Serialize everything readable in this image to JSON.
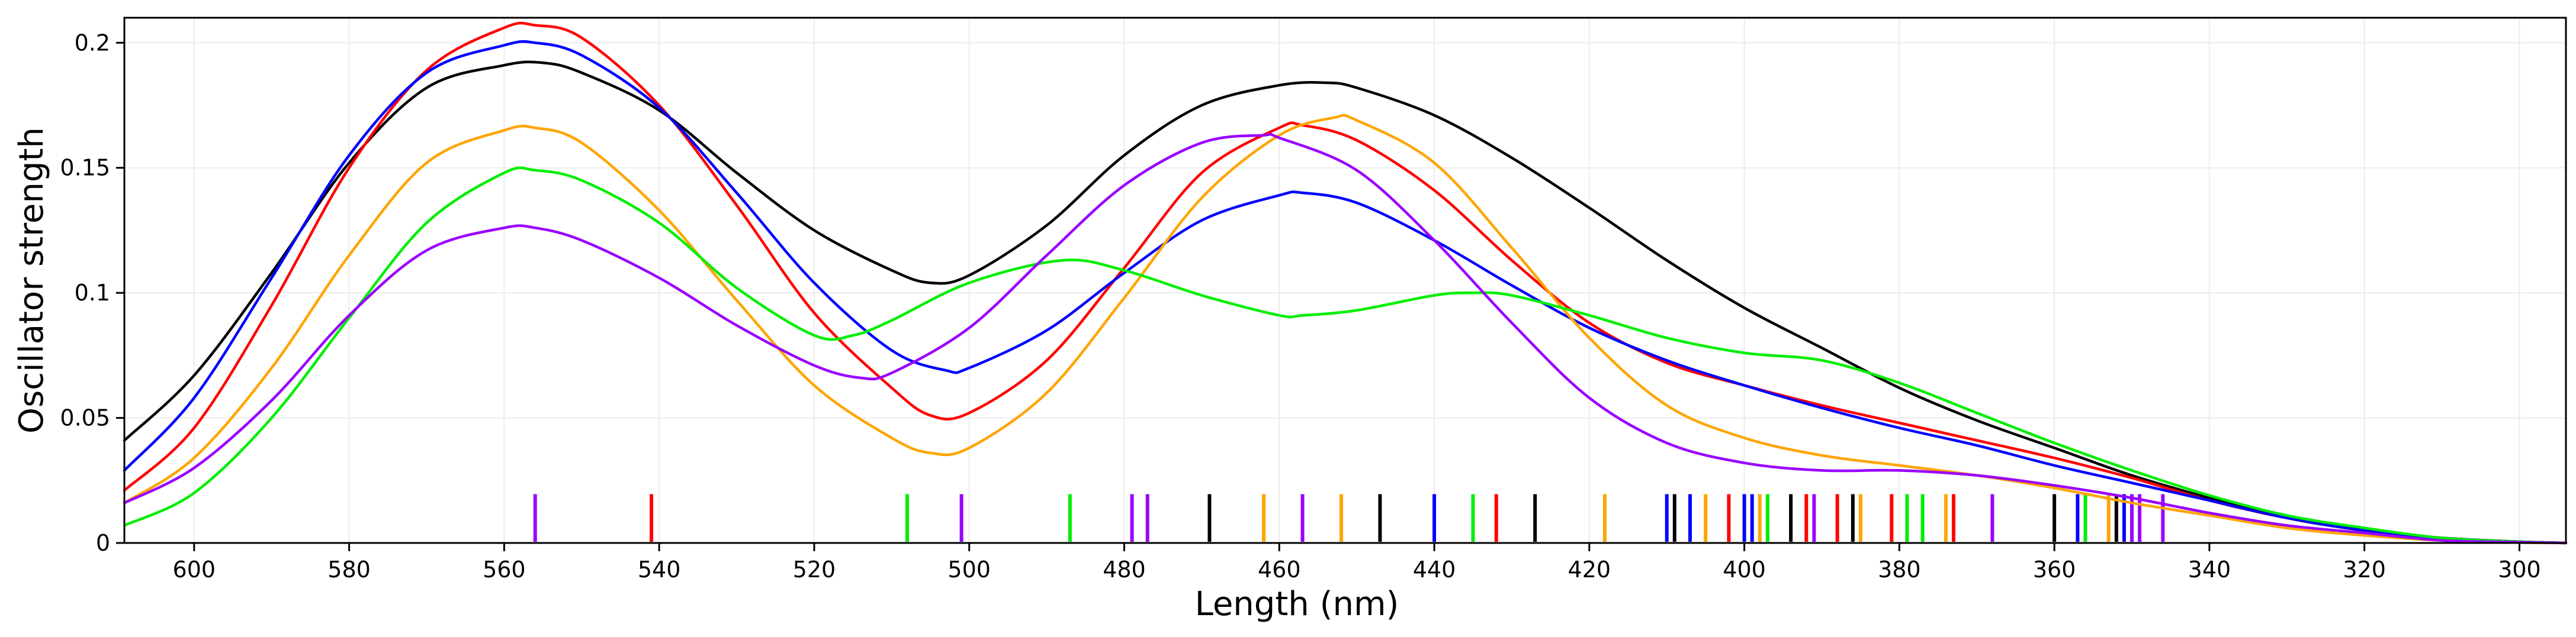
{
  "chart_data": {
    "type": "line",
    "title": "",
    "xlabel": "Length (nm)",
    "ylabel": "Oscillator strength",
    "xlim": [
      609,
      294
    ],
    "ylim": [
      0,
      0.21
    ],
    "x_ticks": [
      600,
      580,
      560,
      540,
      520,
      500,
      480,
      460,
      440,
      420,
      400,
      380,
      360,
      340,
      320,
      300
    ],
    "x_tick_labels": [
      "600",
      "580",
      "560",
      "540",
      "520",
      "500",
      "480",
      "460",
      "440",
      "420",
      "400",
      "380",
      "360",
      "340",
      "320",
      "300"
    ],
    "y_ticks": [
      0,
      0.05,
      0.1,
      0.15,
      0.2
    ],
    "y_tick_labels": [
      "0",
      "0.05",
      "0.1",
      "0.15",
      "0.2"
    ],
    "grid": true,
    "series": [
      {
        "name": "black",
        "color": "#000000",
        "points": [
          [
            609,
            0.041
          ],
          [
            600,
            0.067
          ],
          [
            590,
            0.108
          ],
          [
            580,
            0.152
          ],
          [
            570,
            0.182
          ],
          [
            560,
            0.191
          ],
          [
            555,
            0.192
          ],
          [
            550,
            0.188
          ],
          [
            540,
            0.173
          ],
          [
            530,
            0.148
          ],
          [
            520,
            0.125
          ],
          [
            510,
            0.109
          ],
          [
            505,
            0.104
          ],
          [
            500,
            0.107
          ],
          [
            490,
            0.127
          ],
          [
            480,
            0.155
          ],
          [
            470,
            0.175
          ],
          [
            460,
            0.183
          ],
          [
            454,
            0.184
          ],
          [
            450,
            0.182
          ],
          [
            440,
            0.171
          ],
          [
            430,
            0.154
          ],
          [
            420,
            0.134
          ],
          [
            410,
            0.113
          ],
          [
            400,
            0.094
          ],
          [
            390,
            0.078
          ],
          [
            380,
            0.062
          ],
          [
            370,
            0.049
          ],
          [
            360,
            0.038
          ],
          [
            350,
            0.027
          ],
          [
            340,
            0.018
          ],
          [
            330,
            0.01
          ],
          [
            320,
            0.005
          ],
          [
            310,
            0.002
          ],
          [
            300,
            0.0005
          ],
          [
            294,
            0.0
          ]
        ]
      },
      {
        "name": "red",
        "color": "#ff0000",
        "points": [
          [
            609,
            0.021
          ],
          [
            600,
            0.046
          ],
          [
            590,
            0.095
          ],
          [
            580,
            0.15
          ],
          [
            570,
            0.189
          ],
          [
            560,
            0.206
          ],
          [
            556,
            0.207
          ],
          [
            550,
            0.202
          ],
          [
            540,
            0.175
          ],
          [
            530,
            0.135
          ],
          [
            520,
            0.092
          ],
          [
            510,
            0.062
          ],
          [
            505,
            0.051
          ],
          [
            500,
            0.052
          ],
          [
            490,
            0.073
          ],
          [
            480,
            0.11
          ],
          [
            470,
            0.148
          ],
          [
            460,
            0.166
          ],
          [
            457,
            0.167
          ],
          [
            450,
            0.161
          ],
          [
            440,
            0.141
          ],
          [
            430,
            0.113
          ],
          [
            420,
            0.088
          ],
          [
            410,
            0.072
          ],
          [
            400,
            0.063
          ],
          [
            390,
            0.055
          ],
          [
            380,
            0.048
          ],
          [
            370,
            0.041
          ],
          [
            360,
            0.034
          ],
          [
            350,
            0.026
          ],
          [
            340,
            0.017
          ],
          [
            330,
            0.01
          ],
          [
            320,
            0.005
          ],
          [
            310,
            0.002
          ],
          [
            300,
            0.0005
          ],
          [
            294,
            0.0
          ]
        ]
      },
      {
        "name": "blue",
        "color": "#0000ff",
        "points": [
          [
            609,
            0.029
          ],
          [
            600,
            0.058
          ],
          [
            590,
            0.106
          ],
          [
            580,
            0.155
          ],
          [
            570,
            0.188
          ],
          [
            560,
            0.199
          ],
          [
            556,
            0.2
          ],
          [
            550,
            0.195
          ],
          [
            540,
            0.174
          ],
          [
            530,
            0.14
          ],
          [
            520,
            0.104
          ],
          [
            510,
            0.077
          ],
          [
            503,
            0.069
          ],
          [
            500,
            0.07
          ],
          [
            490,
            0.085
          ],
          [
            480,
            0.108
          ],
          [
            470,
            0.129
          ],
          [
            460,
            0.139
          ],
          [
            457,
            0.14
          ],
          [
            450,
            0.136
          ],
          [
            440,
            0.121
          ],
          [
            430,
            0.103
          ],
          [
            420,
            0.086
          ],
          [
            410,
            0.073
          ],
          [
            400,
            0.063
          ],
          [
            390,
            0.054
          ],
          [
            380,
            0.046
          ],
          [
            370,
            0.039
          ],
          [
            360,
            0.031
          ],
          [
            350,
            0.024
          ],
          [
            340,
            0.017
          ],
          [
            330,
            0.01
          ],
          [
            320,
            0.005
          ],
          [
            310,
            0.002
          ],
          [
            300,
            0.0005
          ],
          [
            294,
            0.0
          ]
        ]
      },
      {
        "name": "orange",
        "color": "#ffa500",
        "points": [
          [
            609,
            0.016
          ],
          [
            600,
            0.034
          ],
          [
            590,
            0.07
          ],
          [
            580,
            0.115
          ],
          [
            570,
            0.152
          ],
          [
            560,
            0.165
          ],
          [
            556,
            0.166
          ],
          [
            550,
            0.16
          ],
          [
            540,
            0.133
          ],
          [
            530,
            0.097
          ],
          [
            520,
            0.063
          ],
          [
            510,
            0.042
          ],
          [
            505,
            0.036
          ],
          [
            500,
            0.038
          ],
          [
            490,
            0.06
          ],
          [
            480,
            0.098
          ],
          [
            470,
            0.138
          ],
          [
            460,
            0.163
          ],
          [
            453,
            0.17
          ],
          [
            450,
            0.169
          ],
          [
            440,
            0.152
          ],
          [
            430,
            0.118
          ],
          [
            420,
            0.082
          ],
          [
            410,
            0.055
          ],
          [
            400,
            0.042
          ],
          [
            390,
            0.035
          ],
          [
            380,
            0.031
          ],
          [
            370,
            0.027
          ],
          [
            360,
            0.022
          ],
          [
            350,
            0.016
          ],
          [
            340,
            0.011
          ],
          [
            330,
            0.006
          ],
          [
            320,
            0.003
          ],
          [
            310,
            0.001
          ],
          [
            300,
            0.0002
          ],
          [
            294,
            0.0
          ]
        ]
      },
      {
        "name": "green",
        "color": "#00ee00",
        "points": [
          [
            609,
            0.007
          ],
          [
            600,
            0.02
          ],
          [
            590,
            0.05
          ],
          [
            580,
            0.09
          ],
          [
            570,
            0.128
          ],
          [
            560,
            0.148
          ],
          [
            556,
            0.149
          ],
          [
            550,
            0.145
          ],
          [
            540,
            0.128
          ],
          [
            530,
            0.102
          ],
          [
            520,
            0.083
          ],
          [
            515,
            0.083
          ],
          [
            510,
            0.089
          ],
          [
            500,
            0.104
          ],
          [
            488,
            0.113
          ],
          [
            480,
            0.109
          ],
          [
            470,
            0.099
          ],
          [
            460,
            0.091
          ],
          [
            457,
            0.091
          ],
          [
            450,
            0.093
          ],
          [
            440,
            0.099
          ],
          [
            435,
            0.1
          ],
          [
            430,
            0.099
          ],
          [
            420,
            0.091
          ],
          [
            410,
            0.082
          ],
          [
            400,
            0.076
          ],
          [
            390,
            0.073
          ],
          [
            380,
            0.064
          ],
          [
            370,
            0.052
          ],
          [
            360,
            0.04
          ],
          [
            350,
            0.029
          ],
          [
            340,
            0.019
          ],
          [
            330,
            0.011
          ],
          [
            320,
            0.006
          ],
          [
            310,
            0.002
          ],
          [
            300,
            0.0005
          ],
          [
            294,
            0.0
          ]
        ]
      },
      {
        "name": "purple",
        "color": "#9a00ff",
        "points": [
          [
            609,
            0.016
          ],
          [
            600,
            0.03
          ],
          [
            590,
            0.057
          ],
          [
            580,
            0.091
          ],
          [
            570,
            0.117
          ],
          [
            560,
            0.126
          ],
          [
            556,
            0.126
          ],
          [
            550,
            0.121
          ],
          [
            540,
            0.106
          ],
          [
            530,
            0.087
          ],
          [
            520,
            0.071
          ],
          [
            514,
            0.066
          ],
          [
            510,
            0.068
          ],
          [
            500,
            0.086
          ],
          [
            490,
            0.115
          ],
          [
            480,
            0.143
          ],
          [
            470,
            0.16
          ],
          [
            462,
            0.163
          ],
          [
            460,
            0.162
          ],
          [
            450,
            0.149
          ],
          [
            440,
            0.121
          ],
          [
            430,
            0.088
          ],
          [
            420,
            0.058
          ],
          [
            410,
            0.04
          ],
          [
            400,
            0.032
          ],
          [
            390,
            0.029
          ],
          [
            380,
            0.029
          ],
          [
            370,
            0.027
          ],
          [
            360,
            0.023
          ],
          [
            350,
            0.018
          ],
          [
            340,
            0.012
          ],
          [
            330,
            0.007
          ],
          [
            320,
            0.004
          ],
          [
            310,
            0.001
          ],
          [
            300,
            0.0003
          ],
          [
            294,
            0.0
          ]
        ]
      }
    ],
    "transition_lines": [
      {
        "x": 556,
        "color": "#9a00ff"
      },
      {
        "x": 541,
        "color": "#ff0000"
      },
      {
        "x": 508,
        "color": "#00ee00"
      },
      {
        "x": 501,
        "color": "#9a00ff"
      },
      {
        "x": 487,
        "color": "#00ee00"
      },
      {
        "x": 479,
        "color": "#9a00ff"
      },
      {
        "x": 477,
        "color": "#9a00ff"
      },
      {
        "x": 469,
        "color": "#000000"
      },
      {
        "x": 462,
        "color": "#ff0000"
      },
      {
        "x": 462,
        "color": "#ffa500"
      },
      {
        "x": 457,
        "color": "#9a00ff"
      },
      {
        "x": 452,
        "color": "#ffa500"
      },
      {
        "x": 447,
        "color": "#000000"
      },
      {
        "x": 440,
        "color": "#0000ff"
      },
      {
        "x": 435,
        "color": "#00ee00"
      },
      {
        "x": 432,
        "color": "#ff0000"
      },
      {
        "x": 427,
        "color": "#000000"
      },
      {
        "x": 418,
        "color": "#ffa500"
      },
      {
        "x": 410,
        "color": "#0000ff"
      },
      {
        "x": 409,
        "color": "#000000"
      },
      {
        "x": 407,
        "color": "#0000ff"
      },
      {
        "x": 405,
        "color": "#ffa500"
      },
      {
        "x": 402,
        "color": "#ff0000"
      },
      {
        "x": 400,
        "color": "#0000ff"
      },
      {
        "x": 399,
        "color": "#0000ff"
      },
      {
        "x": 398,
        "color": "#ffa500"
      },
      {
        "x": 397,
        "color": "#00ee00"
      },
      {
        "x": 394,
        "color": "#000000"
      },
      {
        "x": 392,
        "color": "#ff0000"
      },
      {
        "x": 391,
        "color": "#9a00ff"
      },
      {
        "x": 388,
        "color": "#ff0000"
      },
      {
        "x": 386,
        "color": "#000000"
      },
      {
        "x": 385,
        "color": "#ffa500"
      },
      {
        "x": 381,
        "color": "#ff0000"
      },
      {
        "x": 379,
        "color": "#00ee00"
      },
      {
        "x": 377,
        "color": "#00ee00"
      },
      {
        "x": 374,
        "color": "#ffa500"
      },
      {
        "x": 373,
        "color": "#ff0000"
      },
      {
        "x": 368,
        "color": "#9a00ff"
      },
      {
        "x": 360,
        "color": "#000000"
      },
      {
        "x": 357,
        "color": "#0000ff"
      },
      {
        "x": 356,
        "color": "#00ee00"
      },
      {
        "x": 353,
        "color": "#ffa500"
      },
      {
        "x": 352,
        "color": "#000000"
      },
      {
        "x": 351,
        "color": "#0000ff"
      },
      {
        "x": 350,
        "color": "#9a00ff"
      },
      {
        "x": 349,
        "color": "#9a00ff"
      },
      {
        "x": 346,
        "color": "#9a00ff"
      }
    ]
  }
}
